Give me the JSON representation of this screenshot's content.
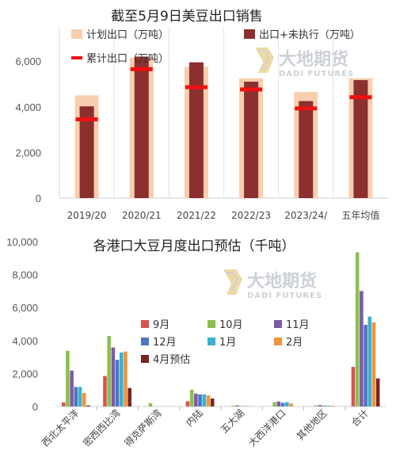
{
  "colors": {
    "plan": "#f8cfae",
    "export": "#8b2f2f",
    "cumulative": "#ee1111",
    "m9": "#d9534f",
    "m10": "#8cbf4a",
    "m11": "#7e5ba8",
    "m12": "#4a78c0",
    "m1": "#3ab0d0",
    "m2": "#f0933a",
    "apr": "#7a2424"
  },
  "watermark": {
    "cn": "大地期货",
    "en": "DADI FUTURES"
  },
  "chart_data": [
    {
      "type": "bar",
      "title": "截至5月9日美豆出口销售",
      "categories": [
        "2019/20",
        "2020/21",
        "2021/22",
        "2022/23",
        "2023/24/",
        "五年均值"
      ],
      "series": [
        {
          "name": "计划出口（万吨）",
          "values": [
            4500,
            6150,
            5750,
            5250,
            4650,
            5250
          ]
        },
        {
          "name": "出口+未执行（万吨）",
          "values": [
            4020,
            6200,
            5950,
            5100,
            4250,
            5170
          ]
        },
        {
          "name": "累计出口（万吨）",
          "values": [
            3450,
            5650,
            4860,
            4760,
            3930,
            4420
          ]
        }
      ],
      "ylim": [
        0,
        7500
      ],
      "yticks": [
        0,
        2000,
        4000,
        6000
      ],
      "ytick_labels": [
        "0",
        "2,000",
        "4,000",
        "6,000"
      ]
    },
    {
      "type": "bar",
      "title": "各港口大豆月度出口预估（千吨）",
      "categories": [
        "西北太平洋",
        "密西西比湾",
        "得克萨斯湾",
        "内陆",
        "五大湖",
        "大西洋港口",
        "其他地区",
        "合计"
      ],
      "series": [
        {
          "name": "9月",
          "values": [
            250,
            1850,
            0,
            320,
            0,
            0,
            0,
            2400
          ]
        },
        {
          "name": "10月",
          "values": [
            3380,
            4280,
            200,
            1020,
            50,
            250,
            60,
            9350
          ]
        },
        {
          "name": "11月",
          "values": [
            2180,
            3580,
            0,
            780,
            60,
            300,
            80,
            7000
          ]
        },
        {
          "name": "12月",
          "values": [
            1180,
            2830,
            0,
            730,
            20,
            220,
            40,
            4950
          ]
        },
        {
          "name": "1月",
          "values": [
            1180,
            3280,
            0,
            730,
            20,
            260,
            40,
            5450
          ]
        },
        {
          "name": "2月",
          "values": [
            820,
            3330,
            0,
            680,
            20,
            180,
            40,
            5100
          ]
        },
        {
          "name": "4月预估",
          "values": [
            60,
            1120,
            0,
            480,
            0,
            0,
            0,
            1700
          ]
        }
      ],
      "ylim": [
        0,
        10000
      ],
      "yticks": [
        0,
        2000,
        4000,
        6000,
        8000,
        10000
      ],
      "ytick_labels": [
        "0",
        "2,000",
        "4,000",
        "6,000",
        "8,000",
        "10,000"
      ]
    }
  ]
}
